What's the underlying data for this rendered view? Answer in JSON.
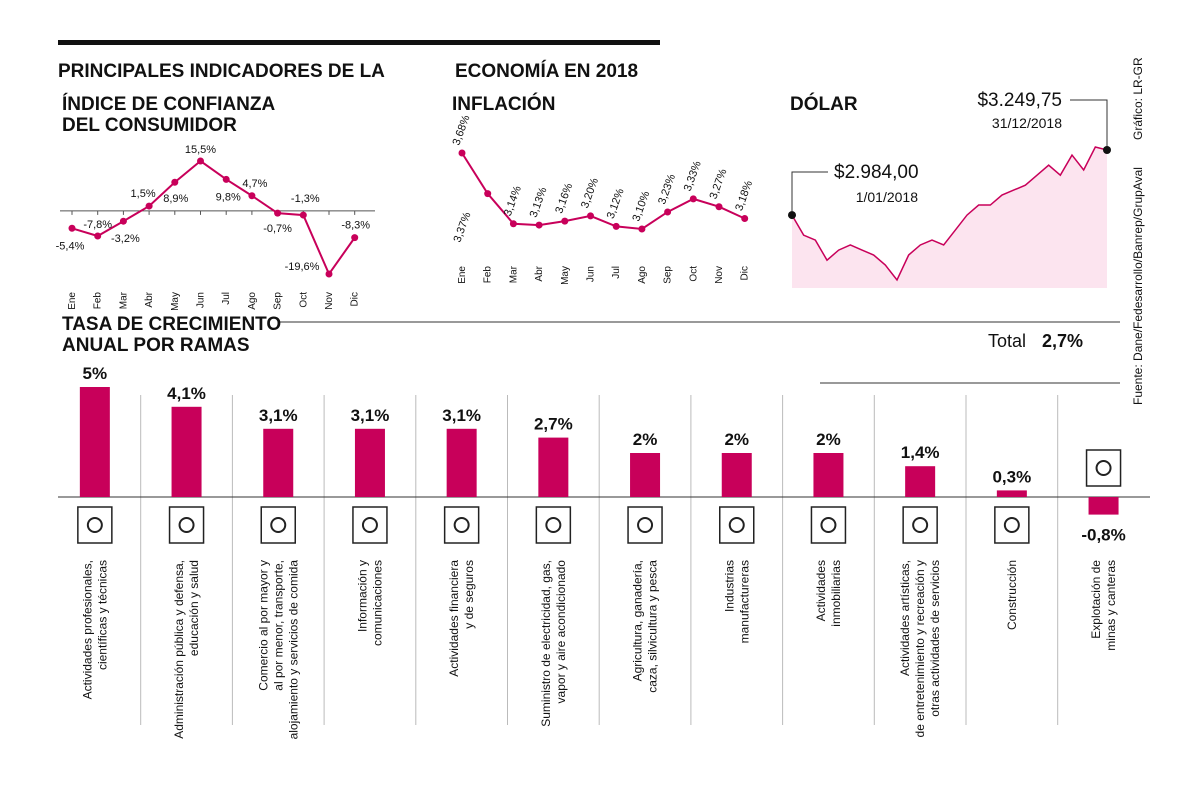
{
  "header": {
    "title": [
      "PRINCIPALES INDICADORES DE LA",
      "ECONOMÍA EN 2018"
    ],
    "source": "Fuente: Dane/Fedesarrollo/Banrep/GrupAval",
    "credit": "Gráfico: LR-GR"
  },
  "chart_data": [
    {
      "type": "line",
      "title": [
        "ÍNDICE DE CONFIANZA",
        "DEL CONSUMIDOR"
      ],
      "color": "#c8005a",
      "categories": [
        "Ene",
        "Feb",
        "Mar",
        "Abr",
        "May",
        "Jun",
        "Jul",
        "Ago",
        "Sep",
        "Oct",
        "Nov",
        "Dic"
      ],
      "values": [
        -5.4,
        -7.8,
        -3.2,
        1.5,
        8.9,
        15.5,
        9.8,
        4.7,
        -0.7,
        -1.3,
        -19.6,
        -8.3
      ],
      "value_labels": [
        "-5,4%",
        "-7,8%",
        "-3,2%",
        "1,5%",
        "8,9%",
        "15,5%",
        "9,8%",
        "4,7%",
        "-0,7%",
        "-1,3%",
        "-19,6%",
        "-8,3%"
      ]
    },
    {
      "type": "line",
      "title": [
        "INFLACIÓN"
      ],
      "color": "#c8005a",
      "categories": [
        "Ene",
        "Feb",
        "Mar",
        "Abr",
        "May",
        "Jun",
        "Jul",
        "Ago",
        "Sep",
        "Oct",
        "Nov",
        "Dic"
      ],
      "values": [
        3.68,
        3.37,
        3.14,
        3.13,
        3.16,
        3.2,
        3.12,
        3.1,
        3.23,
        3.33,
        3.27,
        3.18
      ],
      "value_labels": [
        "3,68%",
        "3,37%",
        "3,14%",
        "3,13%",
        "3,16%",
        "3,20%",
        "3,12%",
        "3,10%",
        "3,23%",
        "3,33%",
        "3,27%",
        "3,18%"
      ]
    },
    {
      "type": "area",
      "title": [
        "DÓLAR"
      ],
      "color": "#c8005a",
      "fill": "#fce4ef",
      "values": [
        2984,
        2902,
        2882,
        2800,
        2841,
        2862,
        2841,
        2821,
        2780,
        2719,
        2821,
        2862,
        2882,
        2862,
        2923,
        2984,
        3025,
        3025,
        3066,
        3086,
        3106,
        3147,
        3188,
        3147,
        3229,
        3168,
        3262,
        3249.75
      ],
      "annotations": [
        {
          "label": "$2.984,00",
          "date": "1/01/2018"
        },
        {
          "label": "$3.249,75",
          "date": "31/12/2018"
        }
      ]
    },
    {
      "type": "bar",
      "title": [
        "TASA DE CRECIMIENTO",
        "ANUAL POR RAMAS"
      ],
      "color": "#c8005a",
      "total": {
        "label": "Total",
        "value": 2.7,
        "value_label": "2,7%"
      },
      "categories": [
        [
          "Actividades profesionales,",
          "científicas y técnicas"
        ],
        [
          "Administración pública y defensa,",
          "educación y salud"
        ],
        [
          "Comercio al por mayor y",
          "al por menor, transporte,",
          "alojamiento y servicios de comida"
        ],
        [
          "Información y",
          "comunicaciones"
        ],
        [
          "Actividades financiera",
          "y de seguros"
        ],
        [
          "Suministro de electricidad, gas,",
          "vapor y aire acondicionado"
        ],
        [
          "Agricultura, ganadería,",
          "caza, silvicultura y pesca"
        ],
        [
          "Industrias",
          "manufactureras"
        ],
        [
          "Actividades",
          "inmobiliarias"
        ],
        [
          "Actividades artísticas,",
          "de entretenimiento y recreación y",
          "otras actividades de servicios"
        ],
        [
          "Construcción"
        ],
        [
          "Explotación de",
          "minas y canteras"
        ]
      ],
      "values": [
        5,
        4.1,
        3.1,
        3.1,
        3.1,
        2.7,
        2,
        2,
        2,
        1.4,
        0.3,
        -0.8
      ],
      "value_labels": [
        "5%",
        "4,1%",
        "3,1%",
        "3,1%",
        "3,1%",
        "2,7%",
        "2%",
        "2%",
        "2%",
        "1,4%",
        "0,3%",
        "-0,8%"
      ]
    }
  ]
}
